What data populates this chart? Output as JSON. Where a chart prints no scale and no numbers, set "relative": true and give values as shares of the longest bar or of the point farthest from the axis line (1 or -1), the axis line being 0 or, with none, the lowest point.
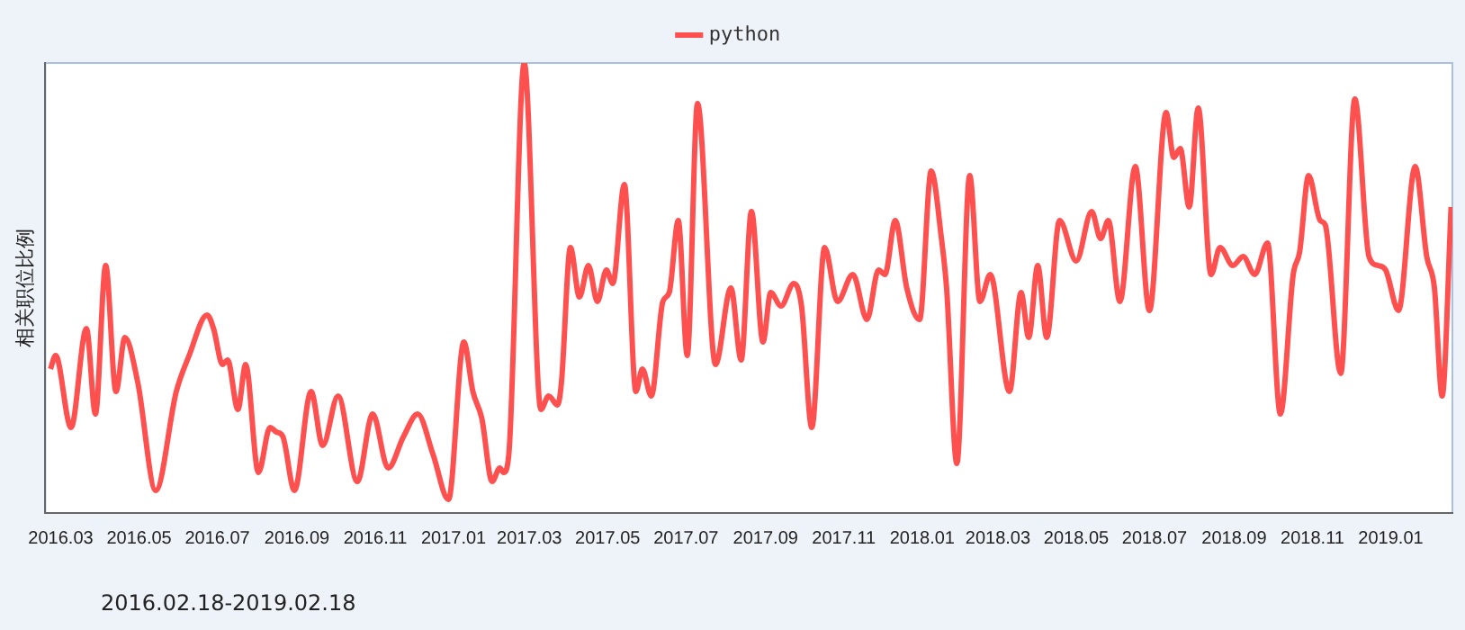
{
  "chart_data": {
    "type": "line",
    "ylabel": "相关职位比例",
    "relative": true,
    "legend": "top",
    "grid": false,
    "marker": "none",
    "line_style": "solid",
    "annotations": [
      "2016.02.18-2019.02.18"
    ],
    "xlim": [
      "2016-02-18",
      "2019-02-18"
    ],
    "xticks": [
      {
        "value": "2016-03",
        "label": "2016.03"
      },
      {
        "value": "2016-05",
        "label": "2016.05"
      },
      {
        "value": "2016-07",
        "label": "2016.07"
      },
      {
        "value": "2016-09",
        "label": "2016.09"
      },
      {
        "value": "2016-11",
        "label": "2016.11"
      },
      {
        "value": "2017-01",
        "label": "2017.01"
      },
      {
        "value": "2017-03",
        "label": "2017.03"
      },
      {
        "value": "2017-05",
        "label": "2017.05"
      },
      {
        "value": "2017-07",
        "label": "2017.07"
      },
      {
        "value": "2017-09",
        "label": "2017.09"
      },
      {
        "value": "2017-11",
        "label": "2017.11"
      },
      {
        "value": "2018-01",
        "label": "2018.01"
      },
      {
        "value": "2018-03",
        "label": "2018.03"
      },
      {
        "value": "2018-05",
        "label": "2018.05"
      },
      {
        "value": "2018-07",
        "label": "2018.07"
      },
      {
        "value": "2018-09",
        "label": "2018.09"
      },
      {
        "value": "2018-11",
        "label": "2018.11"
      },
      {
        "value": "2019-01",
        "label": "2019.01"
      }
    ],
    "x": [
      "2016-02-22",
      "2016-02-26",
      "2016-03-09",
      "2016-03-21",
      "2016-03-28",
      "2016-04-05",
      "2016-04-13",
      "2016-04-20",
      "2016-04-30",
      "2016-05-14",
      "2016-05-30",
      "2016-06-09",
      "2016-06-23",
      "2016-06-28",
      "2016-07-05",
      "2016-07-09",
      "2016-07-17",
      "2016-07-23",
      "2016-08-02",
      "2016-08-11",
      "2016-08-16",
      "2016-08-21",
      "2016-08-30",
      "2016-09-12",
      "2016-09-21",
      "2016-10-03",
      "2016-10-18",
      "2016-10-30",
      "2016-11-11",
      "2016-11-23",
      "2016-12-04",
      "2016-12-16",
      "2016-12-28",
      "2017-01-09",
      "2017-01-16",
      "2017-01-23",
      "2017-01-31",
      "2017-02-06",
      "2017-02-09",
      "2017-02-13",
      "2017-02-25",
      "2017-03-10",
      "2017-03-16",
      "2017-03-23",
      "2017-03-26",
      "2017-04-02",
      "2017-04-09",
      "2017-04-16",
      "2017-04-23",
      "2017-04-30",
      "2017-05-05",
      "2017-05-14",
      "2017-05-23",
      "2017-05-28",
      "2017-06-04",
      "2017-06-13",
      "2017-06-18",
      "2017-06-25",
      "2017-07-02",
      "2017-07-10",
      "2017-07-24",
      "2017-08-05",
      "2017-08-13",
      "2017-08-21",
      "2017-08-30",
      "2017-09-05",
      "2017-09-13",
      "2017-09-23",
      "2017-09-29",
      "2017-10-07",
      "2017-10-17",
      "2017-10-27",
      "2017-11-08",
      "2017-11-19",
      "2017-11-28",
      "2017-12-03",
      "2017-12-11",
      "2017-12-20",
      "2017-12-30",
      "2018-01-08",
      "2018-01-16",
      "2018-01-20",
      "2018-01-28",
      "2018-02-07",
      "2018-02-15",
      "2018-02-23",
      "2018-03-10",
      "2018-03-19",
      "2018-03-25",
      "2018-04-01",
      "2018-04-08",
      "2018-04-18",
      "2018-05-01",
      "2018-05-13",
      "2018-05-20",
      "2018-05-26",
      "2018-06-04",
      "2018-06-16",
      "2018-06-27",
      "2018-07-10",
      "2018-07-16",
      "2018-07-21",
      "2018-07-28",
      "2018-08-04",
      "2018-08-14",
      "2018-08-21",
      "2018-08-31",
      "2018-09-08",
      "2018-09-17",
      "2018-09-27",
      "2018-10-07",
      "2018-10-17",
      "2018-10-22",
      "2018-10-29",
      "2018-11-07",
      "2018-11-11",
      "2018-11-23",
      "2018-12-04",
      "2018-12-15",
      "2018-12-22",
      "2018-12-28",
      "2019-01-07",
      "2019-01-20",
      "2019-01-29",
      "2019-02-04",
      "2019-02-10",
      "2019-02-17"
    ],
    "series": [
      {
        "name": "python",
        "color": "#ff5050",
        "values": [
          0.32,
          0.35,
          0.19,
          0.41,
          0.22,
          0.55,
          0.27,
          0.39,
          0.29,
          0.05,
          0.27,
          0.35,
          0.44,
          0.41,
          0.33,
          0.34,
          0.23,
          0.33,
          0.09,
          0.19,
          0.18,
          0.17,
          0.05,
          0.27,
          0.15,
          0.26,
          0.07,
          0.22,
          0.1,
          0.17,
          0.22,
          0.13,
          0.03,
          0.38,
          0.27,
          0.21,
          0.07,
          0.1,
          0.09,
          0.13,
          1.0,
          0.23,
          0.26,
          0.24,
          0.29,
          0.59,
          0.48,
          0.55,
          0.47,
          0.54,
          0.51,
          0.73,
          0.27,
          0.32,
          0.26,
          0.47,
          0.49,
          0.65,
          0.35,
          0.91,
          0.33,
          0.5,
          0.34,
          0.67,
          0.38,
          0.49,
          0.46,
          0.51,
          0.46,
          0.19,
          0.59,
          0.47,
          0.53,
          0.43,
          0.54,
          0.53,
          0.65,
          0.5,
          0.43,
          0.76,
          0.61,
          0.5,
          0.11,
          0.75,
          0.47,
          0.53,
          0.27,
          0.49,
          0.39,
          0.55,
          0.39,
          0.65,
          0.56,
          0.67,
          0.61,
          0.65,
          0.47,
          0.77,
          0.45,
          0.89,
          0.79,
          0.81,
          0.68,
          0.9,
          0.53,
          0.59,
          0.55,
          0.57,
          0.53,
          0.6,
          0.22,
          0.53,
          0.58,
          0.75,
          0.65,
          0.64,
          0.31,
          0.92,
          0.57,
          0.55,
          0.54,
          0.45,
          0.77,
          0.57,
          0.5,
          0.26,
          0.68
        ]
      }
    ]
  }
}
